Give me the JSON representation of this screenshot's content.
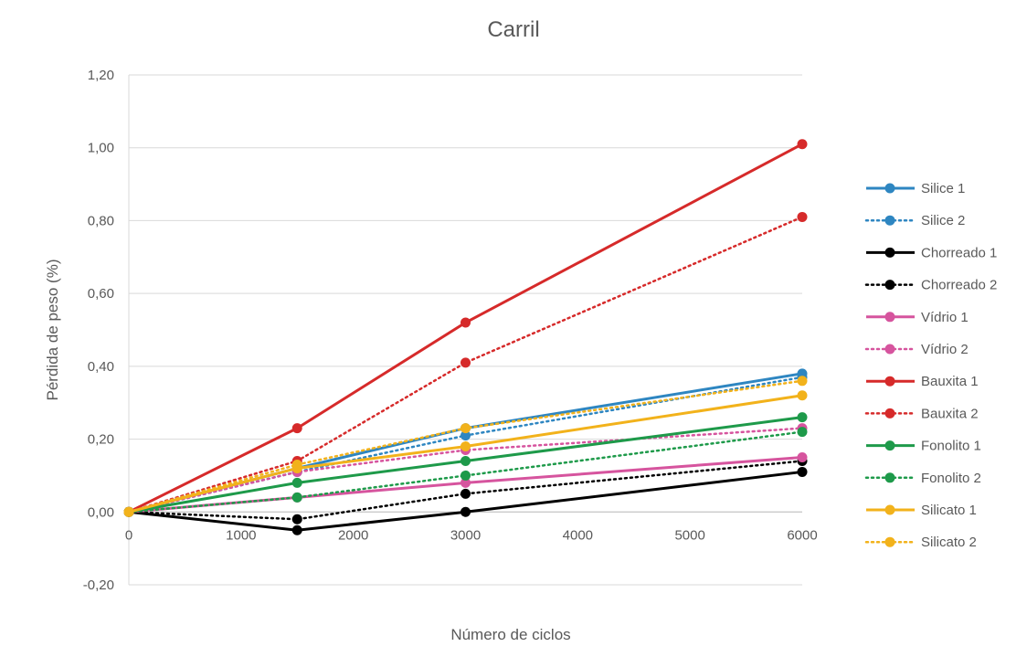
{
  "chart_data": {
    "type": "line",
    "title": "Carril",
    "xlabel": "Número de ciclos",
    "ylabel": "Pérdida de peso (%)",
    "xlim": [
      0,
      6000
    ],
    "ylim": [
      -0.2,
      1.2
    ],
    "x_tick_labels": [
      "0",
      "1000",
      "2000",
      "3000",
      "4000",
      "5000",
      "6000"
    ],
    "y_tick_labels": [
      "-0,20",
      "0,00",
      "0,20",
      "0,40",
      "0,60",
      "0,80",
      "1,00",
      "1,20"
    ],
    "y_ticks": [
      -0.2,
      0,
      0.2,
      0.4,
      0.6,
      0.8,
      1.0,
      1.2
    ],
    "x_ticks": [
      0,
      1000,
      2000,
      3000,
      4000,
      5000,
      6000
    ],
    "grid": "horizontal",
    "legend_position": "right",
    "x": [
      0,
      1500,
      3000,
      6000
    ],
    "series": [
      {
        "name": "Silice 1",
        "color": "#2E86C1",
        "style": "solid",
        "values": [
          0,
          0.12,
          0.23,
          0.38
        ]
      },
      {
        "name": "Silice 2",
        "color": "#2E86C1",
        "style": "dotted",
        "values": [
          0,
          0.11,
          0.21,
          0.37
        ]
      },
      {
        "name": "Chorreado 1",
        "color": "#000000",
        "style": "solid",
        "values": [
          0,
          -0.05,
          0.0,
          0.11
        ]
      },
      {
        "name": "Chorreado 2",
        "color": "#000000",
        "style": "dotted",
        "values": [
          0,
          -0.02,
          0.05,
          0.14
        ]
      },
      {
        "name": "Vídrio 1",
        "color": "#D6549E",
        "style": "solid",
        "values": [
          0,
          0.04,
          0.08,
          0.15
        ]
      },
      {
        "name": "Vídrio 2",
        "color": "#D6549E",
        "style": "dotted",
        "values": [
          0,
          0.11,
          0.17,
          0.23
        ]
      },
      {
        "name": "Bauxita 1",
        "color": "#D62A2A",
        "style": "solid",
        "values": [
          0,
          0.23,
          0.52,
          1.01
        ]
      },
      {
        "name": "Bauxita 2",
        "color": "#D62A2A",
        "style": "dotted",
        "values": [
          0,
          0.14,
          0.41,
          0.81
        ]
      },
      {
        "name": "Fonolito 1",
        "color": "#1E9A4A",
        "style": "solid",
        "values": [
          0,
          0.08,
          0.14,
          0.26
        ]
      },
      {
        "name": "Fonolito 2",
        "color": "#1E9A4A",
        "style": "dotted",
        "values": [
          0,
          0.04,
          0.1,
          0.22
        ]
      },
      {
        "name": "Silicato 1",
        "color": "#F2B21B",
        "style": "solid",
        "values": [
          0,
          0.12,
          0.18,
          0.32
        ]
      },
      {
        "name": "Silicato 2",
        "color": "#F2B21B",
        "style": "dotted",
        "values": [
          0,
          0.13,
          0.23,
          0.36
        ]
      }
    ]
  }
}
